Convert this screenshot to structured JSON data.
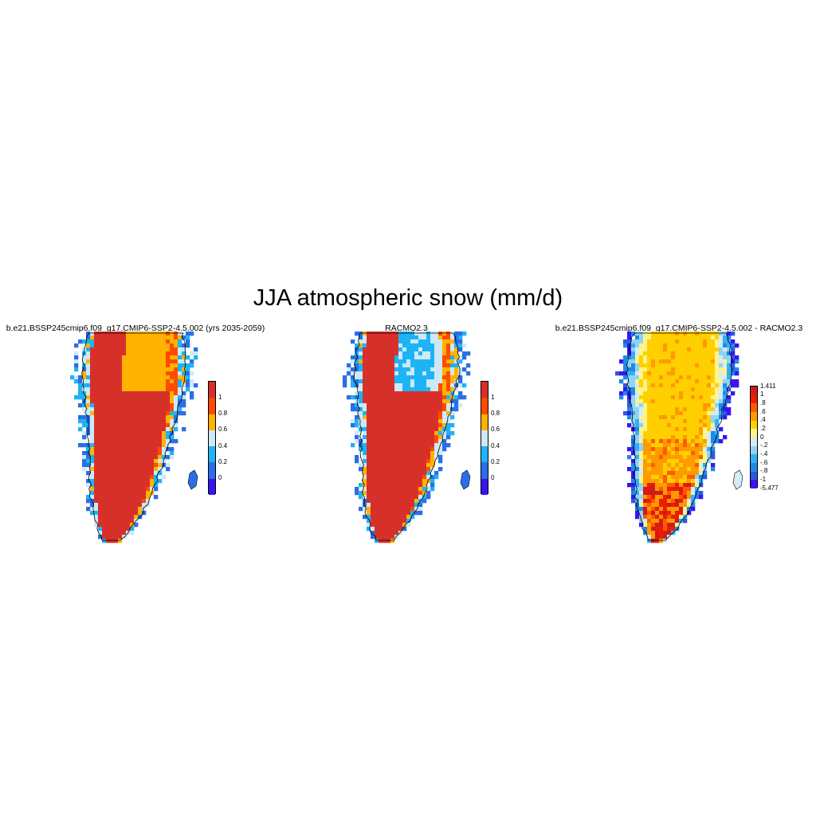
{
  "title": "JJA atmospheric snow (mm/d)",
  "panels": [
    {
      "title": "b.e21.BSSP245cmip6.f09_g17.CMIP6-SSP2-4.5.002 (yrs 2035-2059)",
      "colorbar": {
        "labels": [
          "1",
          "0.8",
          "0.6",
          "0.4",
          "0.2",
          "0"
        ],
        "colors": [
          "#d7302a",
          "#ff4a00",
          "#ffb300",
          "#cde9f6",
          "#1eb3f5",
          "#2b6ee6",
          "#3a14f0"
        ]
      },
      "dominant_levels": {
        "interior_north": "0.8-1",
        "west_south": ">1",
        "coast": "0.2-0.6"
      }
    },
    {
      "title": "RACMO2.3",
      "colorbar": {
        "labels": [
          "1",
          "0.8",
          "0.6",
          "0.4",
          "0.2",
          "0"
        ],
        "colors": [
          "#d7302a",
          "#ff4a00",
          "#ffb300",
          "#cde9f6",
          "#1eb3f5",
          "#2b6ee6",
          "#3a14f0"
        ]
      },
      "dominant_levels": {
        "interior_north": "0.2-0.6",
        "west_south": ">1",
        "coast": "0.2-0.6"
      }
    },
    {
      "title": "b.e21.BSSP245cmip6.f09_g17.CMIP6-SSP2-4.5.002 - RACMO2.3",
      "colorbar": {
        "labels": [
          "1.411",
          "1",
          ".8",
          ".6",
          ".4",
          ".2",
          "0",
          "-.2",
          "-.4",
          "-.6",
          "-.8",
          "-1",
          "-5.477"
        ],
        "colors": [
          "#d21a1a",
          "#ee1c00",
          "#ff5a00",
          "#ff9a00",
          "#ffcf00",
          "#fff38a",
          "#d3ecf8",
          "#90d3f5",
          "#35aef5",
          "#1e8ae8",
          "#2b5ae0",
          "#3a14f0"
        ]
      },
      "dominant_levels": {
        "interior": "0.2-0.6",
        "south": "0.6-1.411",
        "coast": "-1 to 0"
      }
    }
  ]
}
